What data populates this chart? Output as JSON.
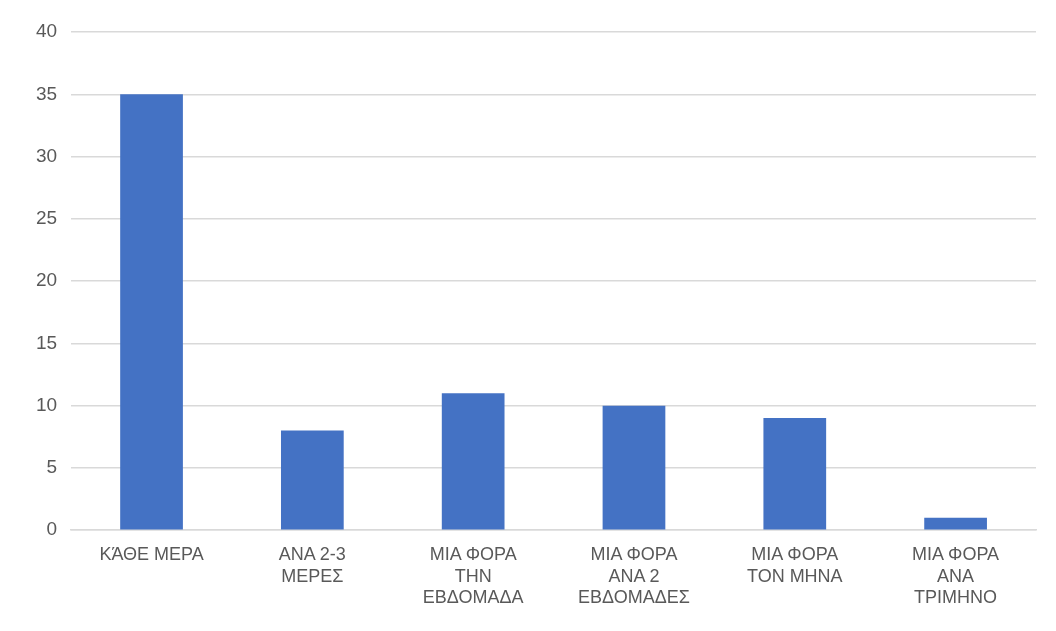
{
  "chart_data": {
    "type": "bar",
    "categories": [
      "ΚΆΘΕ ΜΕΡΑ",
      "ΑΝΑ 2-3 ΜΕΡΕΣ",
      "ΜΙΑ ΦΟΡΑ ΤΗΝ ΕΒΔΟΜΑΔΑ",
      "ΜΙΑ ΦΟΡΑ ΑΝΑ 2 ΕΒΔΟΜΑΔΕΣ",
      "ΜΙΑ ΦΟΡΑ ΤΟΝ ΜΗΝΑ",
      "ΜΙΑ ΦΟΡΑ ΑΝΑ ΤΡΙΜΗΝΟ"
    ],
    "values": [
      35,
      8,
      11,
      10,
      9,
      1
    ],
    "color": "#4472c4",
    "ylim": [
      0,
      40
    ],
    "yticks": [
      0,
      5,
      10,
      15,
      20,
      25,
      30,
      35,
      40
    ],
    "grid": "y",
    "legend": false
  }
}
